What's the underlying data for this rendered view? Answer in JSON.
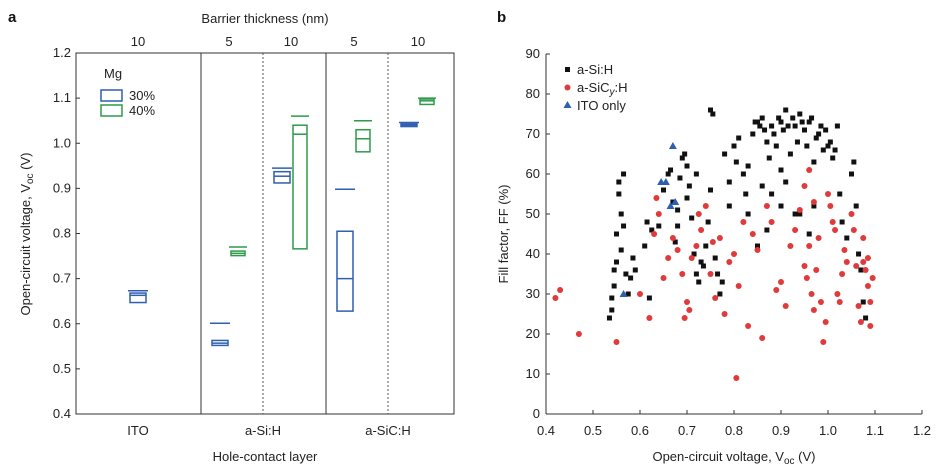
{
  "chart_data": [
    {
      "panel": "a",
      "type": "box",
      "top_title": "Barrier thickness (nm)",
      "xlabel": "Hole-contact layer",
      "ylabel": "Open-circuit voltage, V",
      "ylabel_sub": "oc",
      "ylabel_unit": "(V)",
      "ylim": [
        0.4,
        1.2
      ],
      "yticks": [
        0.4,
        0.5,
        0.6,
        0.7,
        0.8,
        0.9,
        1.0,
        1.1,
        1.2
      ],
      "ytick_labels": [
        "0.4",
        "0.5",
        "0.6",
        "0.7",
        "0.8",
        "0.9",
        "1.0",
        "1.1",
        "1.2"
      ],
      "legend": {
        "title": "Mg",
        "entries": [
          {
            "name": "30%",
            "color": "#2f5fb0"
          },
          {
            "name": "40%",
            "color": "#2e9a4a"
          }
        ]
      },
      "groups": [
        {
          "label": "ITO",
          "subgroups": [
            {
              "thickness": "10"
            }
          ]
        },
        {
          "label": "a-Si:H",
          "subgroups": [
            {
              "thickness": "5"
            },
            {
              "thickness": "10"
            }
          ]
        },
        {
          "label": "a-SiC:H",
          "subgroups": [
            {
              "thickness": "5"
            },
            {
              "thickness": "10"
            }
          ]
        }
      ],
      "boxes": [
        {
          "group": 0,
          "sub": 0,
          "series": "30%",
          "q1": 0.647,
          "median": 0.663,
          "q3": 0.668,
          "whisker_high": 0.673
        },
        {
          "group": 1,
          "sub": 0,
          "series": "30%",
          "q1": 0.552,
          "median": 0.557,
          "q3": 0.563,
          "whisker_high": 0.601
        },
        {
          "group": 1,
          "sub": 0,
          "series": "40%",
          "q1": 0.751,
          "median": 0.756,
          "q3": 0.761,
          "whisker_high": 0.77
        },
        {
          "group": 1,
          "sub": 1,
          "series": "30%",
          "q1": 0.912,
          "median": 0.927,
          "q3": 0.937,
          "whisker_high": 0.945
        },
        {
          "group": 1,
          "sub": 1,
          "series": "40%",
          "q1": 0.766,
          "median": 1.02,
          "q3": 1.04,
          "whisker_high": 1.06
        },
        {
          "group": 2,
          "sub": 0,
          "series": "30%",
          "q1": 0.628,
          "median": 0.7,
          "q3": 0.805,
          "whisker_high": 0.898
        },
        {
          "group": 2,
          "sub": 0,
          "series": "40%",
          "q1": 0.981,
          "median": 1.01,
          "q3": 1.03,
          "whisker_high": 1.05
        },
        {
          "group": 2,
          "sub": 1,
          "series": "30%",
          "q1": 1.037,
          "median": 1.04,
          "q3": 1.043,
          "whisker_high": 1.046
        },
        {
          "group": 2,
          "sub": 1,
          "series": "40%",
          "q1": 1.086,
          "median": 1.094,
          "q3": 1.098,
          "whisker_high": 1.1
        }
      ]
    },
    {
      "panel": "b",
      "type": "scatter",
      "xlabel": "Open-circuit voltage, V",
      "xlabel_sub": "oc",
      "xlabel_unit": "(V)",
      "ylabel": "Fill factor, FF (%)",
      "xlim": [
        0.4,
        1.2
      ],
      "ylim": [
        0,
        90
      ],
      "xticks": [
        0.4,
        0.5,
        0.6,
        0.7,
        0.8,
        0.9,
        1.0,
        1.1,
        1.2
      ],
      "xtick_labels": [
        "0.4",
        "0.5",
        "0.6",
        "0.7",
        "0.8",
        "0.9",
        "1.0",
        "1.1",
        "1.2"
      ],
      "yticks": [
        0,
        10,
        20,
        30,
        40,
        50,
        60,
        70,
        80,
        90
      ],
      "ytick_labels": [
        "0",
        "10",
        "20",
        "30",
        "40",
        "50",
        "60",
        "70",
        "80",
        "90"
      ],
      "legend_position": "top-left",
      "series": [
        {
          "name": "a-Si:H",
          "marker": "square",
          "color": "#111111",
          "points": [
            [
              0.535,
              24
            ],
            [
              0.54,
              26
            ],
            [
              0.54,
              29
            ],
            [
              0.545,
              32
            ],
            [
              0.545,
              36
            ],
            [
              0.55,
              38
            ],
            [
              0.55,
              45
            ],
            [
              0.555,
              55
            ],
            [
              0.555,
              58
            ],
            [
              0.56,
              41
            ],
            [
              0.56,
              50
            ],
            [
              0.565,
              60
            ],
            [
              0.565,
              47
            ],
            [
              0.57,
              35
            ],
            [
              0.575,
              30
            ],
            [
              0.58,
              34
            ],
            [
              0.585,
              39
            ],
            [
              0.59,
              36
            ],
            [
              0.61,
              42
            ],
            [
              0.615,
              48
            ],
            [
              0.62,
              29
            ],
            [
              0.625,
              46
            ],
            [
              0.64,
              47
            ],
            [
              0.65,
              56
            ],
            [
              0.66,
              60
            ],
            [
              0.665,
              61
            ],
            [
              0.67,
              53
            ],
            [
              0.675,
              43
            ],
            [
              0.68,
              47
            ],
            [
              0.685,
              59
            ],
            [
              0.69,
              64
            ],
            [
              0.695,
              65
            ],
            [
              0.7,
              62
            ],
            [
              0.705,
              57
            ],
            [
              0.71,
              49
            ],
            [
              0.715,
              40
            ],
            [
              0.72,
              35
            ],
            [
              0.725,
              33
            ],
            [
              0.73,
              38
            ],
            [
              0.735,
              37
            ],
            [
              0.74,
              42
            ],
            [
              0.745,
              48
            ],
            [
              0.75,
              76
            ],
            [
              0.755,
              75
            ],
            [
              0.76,
              39
            ],
            [
              0.765,
              35
            ],
            [
              0.77,
              30
            ],
            [
              0.775,
              33
            ],
            [
              0.78,
              65
            ],
            [
              0.79,
              58
            ],
            [
              0.8,
              67
            ],
            [
              0.805,
              63
            ],
            [
              0.81,
              69
            ],
            [
              0.82,
              60
            ],
            [
              0.825,
              55
            ],
            [
              0.83,
              62
            ],
            [
              0.84,
              70
            ],
            [
              0.845,
              73
            ],
            [
              0.85,
              73
            ],
            [
              0.855,
              72
            ],
            [
              0.86,
              74
            ],
            [
              0.865,
              71
            ],
            [
              0.87,
              68
            ],
            [
              0.875,
              64
            ],
            [
              0.88,
              72
            ],
            [
              0.885,
              70
            ],
            [
              0.89,
              67
            ],
            [
              0.895,
              74
            ],
            [
              0.9,
              73
            ],
            [
              0.905,
              71
            ],
            [
              0.91,
              76
            ],
            [
              0.915,
              72
            ],
            [
              0.92,
              65
            ],
            [
              0.925,
              74
            ],
            [
              0.93,
              72
            ],
            [
              0.935,
              68
            ],
            [
              0.94,
              75
            ],
            [
              0.945,
              73
            ],
            [
              0.95,
              71
            ],
            [
              0.955,
              67
            ],
            [
              0.96,
              73
            ],
            [
              0.965,
              74
            ],
            [
              0.97,
              63
            ],
            [
              0.975,
              69
            ],
            [
              0.98,
              70
            ],
            [
              0.985,
              72
            ],
            [
              0.99,
              66
            ],
            [
              0.995,
              71
            ],
            [
              1.0,
              67
            ],
            [
              1.005,
              68
            ],
            [
              1.01,
              64
            ],
            [
              1.015,
              66
            ],
            [
              1.02,
              72
            ],
            [
              1.025,
              55
            ],
            [
              1.03,
              48
            ],
            [
              1.04,
              44
            ],
            [
              1.05,
              60
            ],
            [
              1.055,
              63
            ],
            [
              1.06,
              52
            ],
            [
              1.065,
              40
            ],
            [
              1.07,
              36
            ],
            [
              1.075,
              28
            ],
            [
              1.08,
              24
            ],
            [
              0.87,
              46
            ],
            [
              0.9,
              52
            ],
            [
              0.93,
              50
            ],
            [
              0.96,
              45
            ],
            [
              0.85,
              42
            ],
            [
              0.88,
              55
            ],
            [
              0.91,
              58
            ],
            [
              0.94,
              50
            ],
            [
              0.97,
              52
            ],
            [
              0.83,
              50
            ],
            [
              0.86,
              57
            ],
            [
              0.75,
              56
            ],
            [
              0.79,
              52
            ],
            [
              0.72,
              60
            ],
            [
              0.7,
              54
            ],
            [
              0.68,
              51
            ],
            [
              0.9,
              61
            ]
          ]
        },
        {
          "name": "a-SiCy:H",
          "marker": "circle",
          "color": "#e03a3a",
          "points": [
            [
              0.42,
              29
            ],
            [
              0.43,
              31
            ],
            [
              0.47,
              20
            ],
            [
              0.55,
              18
            ],
            [
              0.6,
              30
            ],
            [
              0.62,
              24
            ],
            [
              0.63,
              45
            ],
            [
              0.635,
              54
            ],
            [
              0.64,
              50
            ],
            [
              0.65,
              34
            ],
            [
              0.66,
              39
            ],
            [
              0.67,
              44
            ],
            [
              0.68,
              41
            ],
            [
              0.69,
              35
            ],
            [
              0.695,
              24
            ],
            [
              0.7,
              28
            ],
            [
              0.705,
              26
            ],
            [
              0.71,
              39
            ],
            [
              0.72,
              42
            ],
            [
              0.725,
              50
            ],
            [
              0.73,
              46
            ],
            [
              0.74,
              52
            ],
            [
              0.75,
              35
            ],
            [
              0.755,
              43
            ],
            [
              0.76,
              29
            ],
            [
              0.77,
              44
            ],
            [
              0.78,
              25
            ],
            [
              0.79,
              38
            ],
            [
              0.8,
              40
            ],
            [
              0.805,
              9
            ],
            [
              0.81,
              32
            ],
            [
              0.82,
              48
            ],
            [
              0.83,
              22
            ],
            [
              0.84,
              45
            ],
            [
              0.85,
              41
            ],
            [
              0.86,
              19
            ],
            [
              0.87,
              52
            ],
            [
              0.88,
              48
            ],
            [
              0.89,
              31
            ],
            [
              0.9,
              33
            ],
            [
              0.91,
              27
            ],
            [
              0.92,
              42
            ],
            [
              0.93,
              46
            ],
            [
              0.94,
              51
            ],
            [
              0.95,
              37
            ],
            [
              0.955,
              34
            ],
            [
              0.96,
              42
            ],
            [
              0.965,
              30
            ],
            [
              0.97,
              26
            ],
            [
              0.975,
              36
            ],
            [
              0.98,
              44
            ],
            [
              0.985,
              28
            ],
            [
              0.99,
              18
            ],
            [
              0.995,
              23
            ],
            [
              1.0,
              55
            ],
            [
              1.005,
              52
            ],
            [
              1.01,
              48
            ],
            [
              1.015,
              46
            ],
            [
              1.02,
              30
            ],
            [
              1.025,
              28
            ],
            [
              1.03,
              35
            ],
            [
              1.035,
              41
            ],
            [
              1.04,
              38
            ],
            [
              1.05,
              50
            ],
            [
              1.055,
              46
            ],
            [
              1.06,
              37
            ],
            [
              1.065,
              27
            ],
            [
              1.07,
              23
            ],
            [
              1.075,
              38
            ],
            [
              1.08,
              36
            ],
            [
              1.085,
              32
            ],
            [
              1.09,
              22
            ],
            [
              1.095,
              34
            ],
            [
              1.075,
              44
            ],
            [
              1.085,
              39
            ],
            [
              1.09,
              28
            ],
            [
              0.96,
              61
            ],
            [
              0.95,
              57
            ],
            [
              0.97,
              53
            ]
          ]
        },
        {
          "name": "ITO only",
          "marker": "triangle",
          "color": "#2f5fb0",
          "points": [
            [
              0.565,
              30
            ],
            [
              0.645,
              58
            ],
            [
              0.655,
              58
            ],
            [
              0.665,
              52
            ],
            [
              0.675,
              53
            ],
            [
              0.67,
              67
            ]
          ]
        }
      ]
    }
  ]
}
